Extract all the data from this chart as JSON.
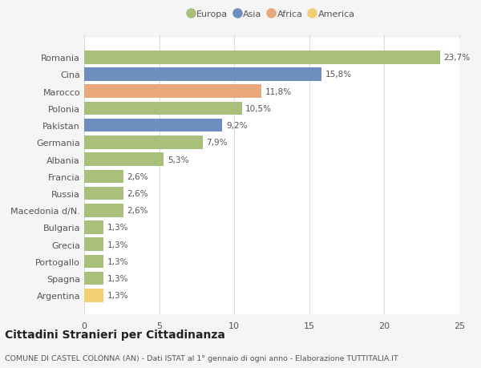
{
  "categories": [
    "Romania",
    "Cina",
    "Marocco",
    "Polonia",
    "Pakistan",
    "Germania",
    "Albania",
    "Francia",
    "Russia",
    "Macedonia d/N.",
    "Bulgaria",
    "Grecia",
    "Portogallo",
    "Spagna",
    "Argentina"
  ],
  "values": [
    23.7,
    15.8,
    11.8,
    10.5,
    9.2,
    7.9,
    5.3,
    2.6,
    2.6,
    2.6,
    1.3,
    1.3,
    1.3,
    1.3,
    1.3
  ],
  "colors": [
    "#a8c07a",
    "#6d8ebf",
    "#e8a87c",
    "#a8c07a",
    "#6d8ebf",
    "#a8c07a",
    "#a8c07a",
    "#a8c07a",
    "#a8c07a",
    "#a8c07a",
    "#a8c07a",
    "#a8c07a",
    "#a8c07a",
    "#a8c07a",
    "#f0d070"
  ],
  "labels": [
    "23,7%",
    "15,8%",
    "11,8%",
    "10,5%",
    "9,2%",
    "7,9%",
    "5,3%",
    "2,6%",
    "2,6%",
    "2,6%",
    "1,3%",
    "1,3%",
    "1,3%",
    "1,3%",
    "1,3%"
  ],
  "legend_labels": [
    "Europa",
    "Asia",
    "Africa",
    "America"
  ],
  "legend_colors": [
    "#a8c07a",
    "#6d8ebf",
    "#e8a87c",
    "#f0d070"
  ],
  "title": "Cittadini Stranieri per Cittadinanza",
  "subtitle": "COMUNE DI CASTEL COLONNA (AN) - Dati ISTAT al 1° gennaio di ogni anno - Elaborazione TUTTITALIA.IT",
  "xlim": [
    0,
    25
  ],
  "xticks": [
    0,
    5,
    10,
    15,
    20,
    25
  ],
  "bg_color": "#f5f5f5",
  "bar_bg_color": "#ffffff",
  "grid_color": "#dddddd",
  "text_color": "#555555",
  "label_fontsize": 7.5,
  "tick_fontsize": 8,
  "title_fontsize": 10,
  "subtitle_fontsize": 6.8
}
